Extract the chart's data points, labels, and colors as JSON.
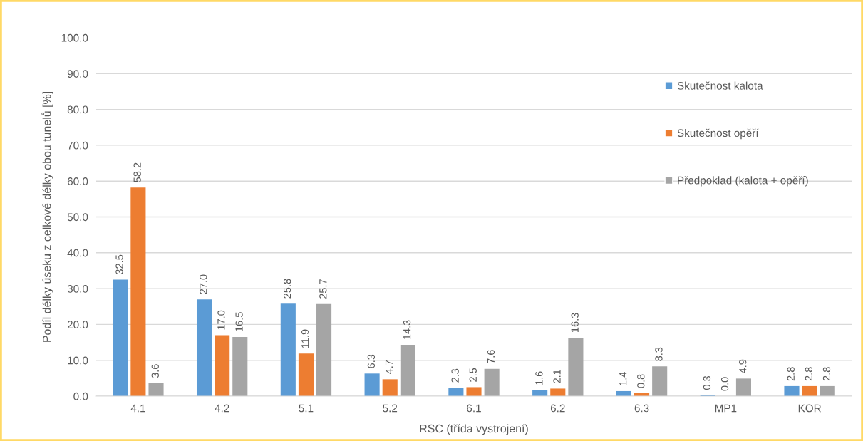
{
  "chart_data": {
    "type": "bar",
    "xlabel": "RSC (třída vystrojení)",
    "ylabel": "Podíl délky úseku z celkové délky obou tunelů [%]",
    "categories": [
      "4.1",
      "4.2",
      "5.1",
      "5.2",
      "6.1",
      "6.2",
      "6.3",
      "MP1",
      "KOR"
    ],
    "series": [
      {
        "name": "Skutečnost kalota",
        "color": "#5b9bd5",
        "values": [
          32.5,
          27,
          25.8,
          6.3,
          2.3,
          1.6,
          1.4,
          0.3,
          2.8
        ],
        "value_labels": [
          "32.5",
          "27.0",
          "25.8",
          "6.3",
          "2.3",
          "1.6",
          "1.4",
          "0.3",
          "2.8"
        ]
      },
      {
        "name": "Skutečnost opěří",
        "color": "#ed7d31",
        "values": [
          58.2,
          17,
          11.9,
          4.7,
          2.5,
          2.1,
          0.8,
          0,
          2.8
        ],
        "value_labels": [
          "58.2",
          "17.0",
          "11.9",
          "4.7",
          "2.5",
          "2.1",
          "0.8",
          "0.0",
          "2.8"
        ]
      },
      {
        "name": "Předpoklad (kalota + opěří)",
        "color": "#a5a5a5",
        "values": [
          3.6,
          16.5,
          25.7,
          14.3,
          7.6,
          16.3,
          8.3,
          4.9,
          2.8
        ],
        "value_labels": [
          "3.6",
          "16.5",
          "25.7",
          "14.3",
          "7.6",
          "16.3",
          "8.3",
          "4.9",
          "2.8"
        ]
      }
    ],
    "ylim": [
      0,
      100
    ],
    "yticks": [
      {
        "value": 0,
        "label": "0.0"
      },
      {
        "value": 10,
        "label": "10.0"
      },
      {
        "value": 20,
        "label": "20.0"
      },
      {
        "value": 30,
        "label": "30.0"
      },
      {
        "value": 40,
        "label": "40.0"
      },
      {
        "value": 50,
        "label": "50.0"
      },
      {
        "value": 60,
        "label": "60.0"
      },
      {
        "value": 70,
        "label": "70.0"
      },
      {
        "value": 80,
        "label": "80.0"
      },
      {
        "value": 90,
        "label": "90.0"
      },
      {
        "value": 100,
        "label": "100.0"
      }
    ],
    "grid": "y",
    "legend": "top right"
  }
}
